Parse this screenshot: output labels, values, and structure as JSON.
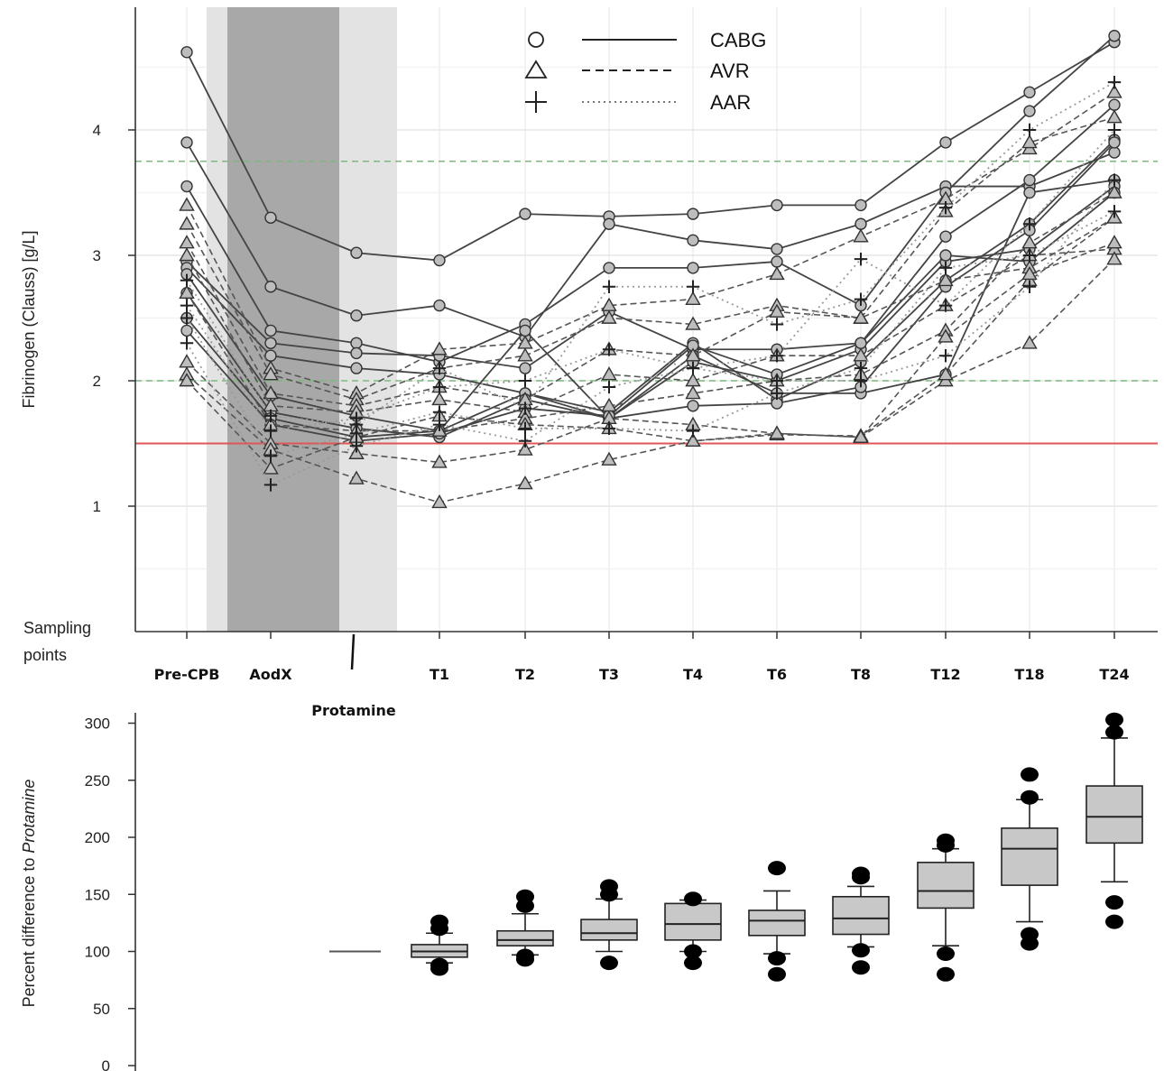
{
  "chart_data": [
    {
      "type": "line",
      "ylabel": "Fibrinogen (Clauss) [g/L]",
      "ylim": [
        0,
        4.95
      ],
      "y_ticks": [
        "1",
        "2",
        "3",
        "4"
      ],
      "grid": true,
      "legend_position": "top-center",
      "sampling_label_line1": "Sampling",
      "sampling_label_line2": "points",
      "x_categories": [
        "Pre-CPB",
        "AodX",
        "Protamine",
        "T1",
        "T2",
        "T3",
        "T4",
        "T6",
        "T8",
        "T12",
        "T18",
        "T24"
      ],
      "legend": [
        {
          "marker": "circle",
          "line": "solid",
          "label": "CABG"
        },
        {
          "marker": "triangle",
          "line": "dashed",
          "label": "AVR"
        },
        {
          "marker": "plus",
          "line": "dotted",
          "label": "AAR"
        }
      ],
      "reference_lines": [
        {
          "y": 3.75,
          "color": "#7fb77e",
          "style": "dashed"
        },
        {
          "y": 2.0,
          "color": "#7fb77e",
          "style": "dashed"
        },
        {
          "y": 1.5,
          "color": "#e05555",
          "style": "solid"
        }
      ],
      "shaded_bands": [
        {
          "x_from": "Pre-CPB",
          "x_to": "Protamine",
          "tone": "light"
        },
        {
          "x_from": "AodX",
          "x_to": "AodX",
          "tone": "dark"
        }
      ],
      "series": [
        {
          "group": "CABG",
          "values": [
            4.62,
            3.3,
            3.02,
            2.96,
            3.33,
            3.31,
            3.33,
            3.4,
            3.4,
            3.9,
            4.3,
            4.7
          ]
        },
        {
          "group": "CABG",
          "values": [
            3.9,
            2.75,
            2.52,
            2.6,
            2.35,
            3.25,
            3.12,
            3.05,
            3.25,
            3.55,
            3.55,
            3.82
          ]
        },
        {
          "group": "CABG",
          "values": [
            3.55,
            2.4,
            2.3,
            2.15,
            2.45,
            2.9,
            2.9,
            2.95,
            2.6,
            3.5,
            4.15,
            4.75
          ]
        },
        {
          "group": "CABG",
          "values": [
            2.95,
            2.3,
            2.22,
            2.2,
            2.1,
            2.55,
            2.25,
            2.25,
            2.3,
            3.15,
            3.6,
            4.2
          ]
        },
        {
          "group": "CABG",
          "values": [
            2.9,
            2.2,
            2.1,
            2.05,
            1.9,
            1.75,
            2.3,
            1.85,
            2.15,
            2.8,
            3.25,
            3.92
          ]
        },
        {
          "group": "CABG",
          "values": [
            2.85,
            1.88,
            1.72,
            1.6,
            1.9,
            1.7,
            2.2,
            1.9,
            1.9,
            2.05,
            3.5,
            3.6
          ]
        },
        {
          "group": "CABG",
          "values": [
            2.7,
            1.75,
            1.62,
            1.55,
            1.85,
            1.7,
            1.8,
            1.82,
            1.95,
            2.75,
            3.2,
            3.9
          ]
        },
        {
          "group": "CABG",
          "values": [
            2.5,
            1.7,
            1.55,
            1.6,
            2.4,
            1.7,
            2.15,
            2.0,
            2.25,
            2.95,
            3.05,
            3.55
          ]
        },
        {
          "group": "CABG",
          "values": [
            2.4,
            1.65,
            1.52,
            1.58,
            1.78,
            1.72,
            2.28,
            2.05,
            2.3,
            3.0,
            2.95,
            3.5
          ]
        },
        {
          "group": "AVR",
          "values": [
            3.4,
            2.1,
            1.9,
            2.25,
            2.3,
            2.6,
            2.65,
            2.85,
            3.15,
            3.45,
            3.85,
            4.3
          ]
        },
        {
          "group": "AVR",
          "values": [
            3.25,
            2.05,
            1.85,
            2.1,
            2.2,
            2.5,
            2.45,
            2.6,
            2.5,
            3.35,
            3.9,
            4.1
          ]
        },
        {
          "group": "AVR",
          "values": [
            3.1,
            1.9,
            1.8,
            1.95,
            1.85,
            2.25,
            2.2,
            2.55,
            2.5,
            2.8,
            2.9,
            3.3
          ]
        },
        {
          "group": "AVR",
          "values": [
            3.0,
            1.8,
            1.75,
            1.85,
            1.75,
            2.05,
            2.0,
            2.2,
            2.2,
            2.6,
            3.0,
            3.05
          ]
        },
        {
          "group": "AVR",
          "values": [
            2.7,
            1.65,
            1.6,
            1.6,
            1.7,
            1.8,
            1.9,
            2.0,
            2.05,
            2.4,
            3.1,
            3.5
          ]
        },
        {
          "group": "AVR",
          "values": [
            2.15,
            1.5,
            1.42,
            1.35,
            1.45,
            1.7,
            1.65,
            1.58,
            1.55,
            2.0,
            2.3,
            2.97
          ]
        },
        {
          "group": "AVR",
          "values": [
            2.05,
            1.45,
            1.22,
            1.03,
            1.18,
            1.37,
            1.52,
            1.57,
            1.56,
            2.05,
            2.8,
            3.3
          ]
        },
        {
          "group": "AVR",
          "values": [
            2.0,
            1.3,
            1.55,
            1.72,
            1.65,
            1.62,
            1.52,
            1.58,
            1.55,
            2.35,
            2.85,
            3.1
          ]
        },
        {
          "group": "AAR",
          "values": [
            2.8,
            1.72,
            1.65,
            2.1,
            1.78,
            2.75,
            2.75,
            2.45,
            2.65,
            3.38,
            4.0,
            4.38
          ]
        },
        {
          "group": "AAR",
          "values": [
            2.6,
            1.6,
            1.7,
            1.95,
            2.0,
            2.25,
            2.1,
            2.2,
            2.97,
            2.6,
            3.25,
            4.0
          ]
        },
        {
          "group": "AAR",
          "values": [
            2.5,
            1.4,
            1.58,
            1.75,
            1.62,
            1.62,
            1.6,
            1.9,
            2.1,
            2.9,
            3.0,
            3.35
          ]
        },
        {
          "group": "AAR",
          "values": [
            2.3,
            1.17,
            1.48,
            1.65,
            1.52,
            1.95,
            2.1,
            2.0,
            2.0,
            2.2,
            2.75,
            3.6
          ]
        }
      ]
    },
    {
      "type": "box",
      "ylabel_prefix": "Percent difference to ",
      "ylabel_italic": "Protamine",
      "ylim": [
        0,
        300
      ],
      "y_ticks": [
        "300",
        "250",
        "200",
        "150",
        "100",
        "50",
        "0"
      ],
      "reference": {
        "category": "Protamine",
        "value": 100
      },
      "boxes": [
        {
          "category": "T1",
          "whisker_low": 90,
          "q1": 95,
          "median": 100,
          "q3": 106,
          "whisker_high": 116,
          "outliers": [
            85,
            88,
            120,
            126
          ]
        },
        {
          "category": "T2",
          "whisker_low": 97,
          "q1": 105,
          "median": 110,
          "q3": 118,
          "whisker_high": 133,
          "outliers": [
            93,
            96,
            140,
            148
          ]
        },
        {
          "category": "T3",
          "whisker_low": 100,
          "q1": 110,
          "median": 116,
          "q3": 128,
          "whisker_high": 146,
          "outliers": [
            90,
            150,
            157
          ]
        },
        {
          "category": "T4",
          "whisker_low": 100,
          "q1": 110,
          "median": 124,
          "q3": 142,
          "whisker_high": 145,
          "outliers": [
            90,
            100,
            146
          ]
        },
        {
          "category": "T6",
          "whisker_low": 98,
          "q1": 114,
          "median": 127,
          "q3": 136,
          "whisker_high": 153,
          "outliers": [
            80,
            94,
            173
          ]
        },
        {
          "category": "T8",
          "whisker_low": 104,
          "q1": 115,
          "median": 129,
          "q3": 148,
          "whisker_high": 157,
          "outliers": [
            86,
            101,
            165,
            168
          ]
        },
        {
          "category": "T12",
          "whisker_low": 105,
          "q1": 138,
          "median": 153,
          "q3": 178,
          "whisker_high": 190,
          "outliers": [
            80,
            98,
            193,
            197
          ]
        },
        {
          "category": "T18",
          "whisker_low": 126,
          "q1": 158,
          "median": 190,
          "q3": 208,
          "whisker_high": 233,
          "outliers": [
            107,
            115,
            235,
            255
          ]
        },
        {
          "category": "T24",
          "whisker_low": 161,
          "q1": 195,
          "median": 218,
          "q3": 245,
          "whisker_high": 287,
          "outliers": [
            126,
            143,
            292,
            303
          ]
        }
      ]
    }
  ]
}
